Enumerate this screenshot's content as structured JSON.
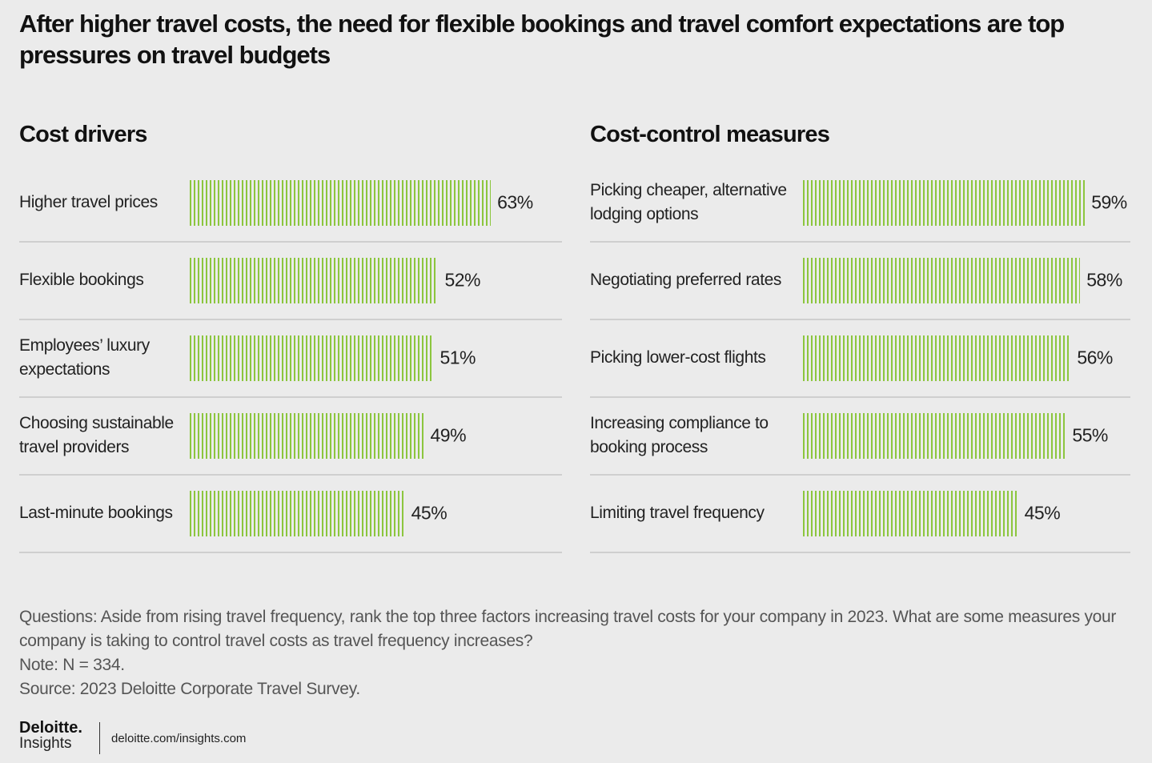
{
  "title": "After higher travel costs, the need for flexible bookings and travel comfort expectations are top pressures on travel budgets",
  "chart_data": [
    {
      "type": "bar",
      "orientation": "horizontal",
      "title": "Cost drivers",
      "color": "#8cc63e",
      "categories": [
        "Higher travel prices",
        "Flexible bookings",
        "Employees’ luxury expectations",
        "Choosing sustainable travel providers",
        "Last-minute bookings"
      ],
      "values": [
        63,
        52,
        51,
        49,
        45
      ],
      "value_labels": [
        "63%",
        "52%",
        "51%",
        "49%",
        "45%"
      ]
    },
    {
      "type": "bar",
      "orientation": "horizontal",
      "title": "Cost-control measures",
      "color": "#8cc63e",
      "categories": [
        "Picking cheaper, alternative lodging options",
        "Negotiating preferred rates",
        "Picking lower-cost flights",
        "Increasing compliance to booking process",
        "Limiting travel frequency"
      ],
      "values": [
        59,
        58,
        56,
        55,
        45
      ],
      "value_labels": [
        "59%",
        "58%",
        "56%",
        "55%",
        "45%"
      ]
    }
  ],
  "notes": [
    "Questions: Aside from rising travel frequency, rank the top three factors increasing travel costs for your company in 2023. What are some measures your company is taking to control travel costs as travel frequency increases?",
    "Note: N = 334.",
    "Source: 2023 Deloitte Corporate Travel Survey."
  ],
  "logo": {
    "brand": "Deloitte.",
    "sub": "Insights"
  },
  "url": "deloitte.com/insights.com"
}
